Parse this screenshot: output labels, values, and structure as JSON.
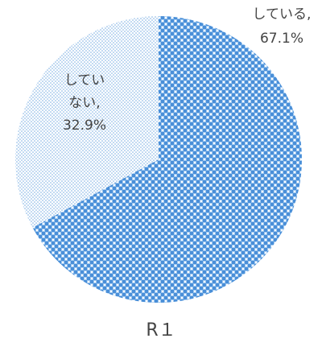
{
  "chart_data": {
    "type": "pie",
    "title": "R１",
    "categories": [
      "している",
      "していない"
    ],
    "values": [
      67.1,
      32.9
    ],
    "value_labels": [
      "67.1%",
      "32.9%"
    ],
    "label_separator": ",",
    "colors": [
      "#5b9bd5",
      "#ffffff"
    ]
  }
}
